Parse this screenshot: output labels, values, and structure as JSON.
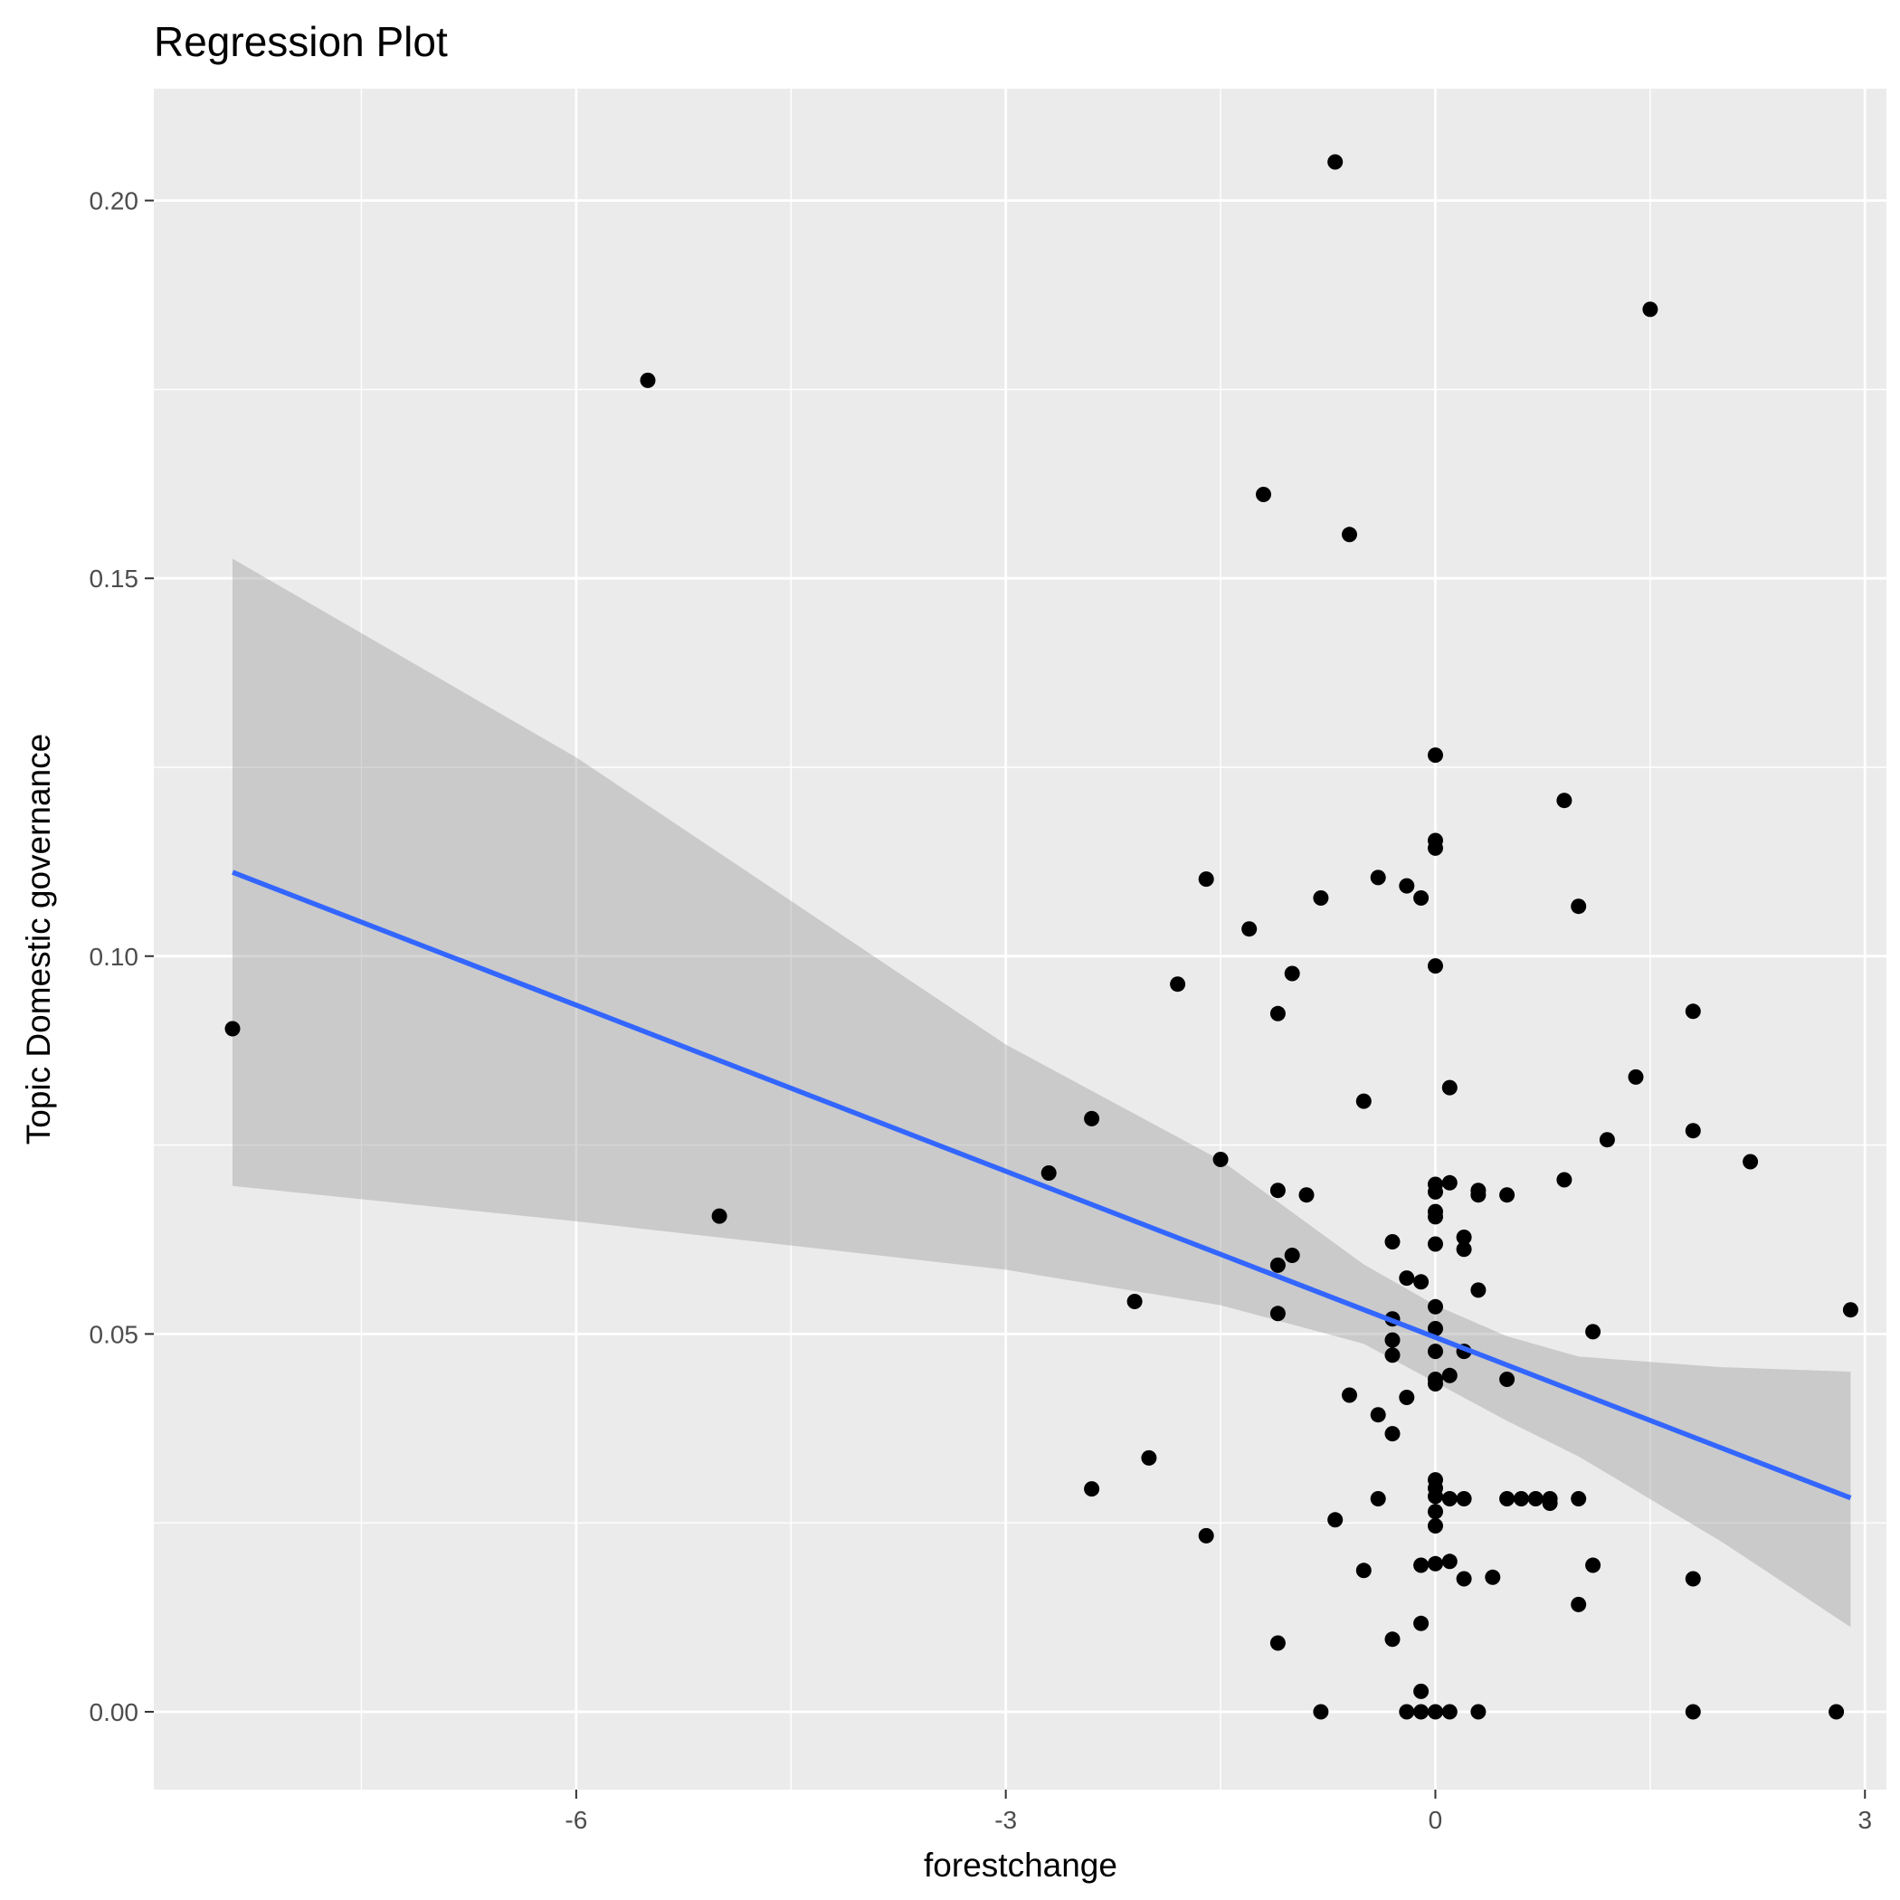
{
  "chart_data": {
    "type": "scatter",
    "title": "Regression Plot",
    "xlabel": "forestchange",
    "ylabel": "Topic Domestic governance",
    "xlim": [
      -8.95,
      3.15
    ],
    "ylim": [
      -0.0103,
      0.2148
    ],
    "x_ticks": [
      -6,
      -3,
      0,
      3
    ],
    "x_tick_labels": [
      "-6",
      "-3",
      "0",
      "3"
    ],
    "x_minor": [
      -7.5,
      -4.5,
      -1.5,
      1.5
    ],
    "y_ticks": [
      0.0,
      0.05,
      0.1,
      0.15,
      0.2
    ],
    "y_tick_labels": [
      "0.00",
      "0.05",
      "0.10",
      "0.15",
      "0.20"
    ],
    "y_minor": [
      0.025,
      0.075,
      0.125,
      0.175
    ],
    "grid": true,
    "points": [
      [
        -8.4,
        0.0904
      ],
      [
        -5.5,
        0.1762
      ],
      [
        -5.0,
        0.0656
      ],
      [
        -2.7,
        0.0713
      ],
      [
        -2.4,
        0.0785
      ],
      [
        -2.4,
        0.0295
      ],
      [
        -2.1,
        0.0543
      ],
      [
        -2.0,
        0.0336
      ],
      [
        -1.8,
        0.0963
      ],
      [
        -1.6,
        0.1102
      ],
      [
        -1.6,
        0.0233
      ],
      [
        -1.5,
        0.0731
      ],
      [
        -1.3,
        0.1036
      ],
      [
        -1.2,
        0.1611
      ],
      [
        -1.1,
        0.0924
      ],
      [
        -1.1,
        0.069
      ],
      [
        -1.1,
        0.0591
      ],
      [
        -1.1,
        0.0527
      ],
      [
        -1.1,
        0.0091
      ],
      [
        -1.0,
        0.0977
      ],
      [
        -1.0,
        0.0604
      ],
      [
        -0.9,
        0.0684
      ],
      [
        -0.8,
        0.1077
      ],
      [
        -0.8,
        0.0
      ],
      [
        -0.7,
        0.2051
      ],
      [
        -0.7,
        0.0254
      ],
      [
        -0.6,
        0.1558
      ],
      [
        -0.6,
        0.0419
      ],
      [
        -0.5,
        0.0808
      ],
      [
        -0.5,
        0.0187
      ],
      [
        -0.4,
        0.1104
      ],
      [
        -0.4,
        0.0393
      ],
      [
        -0.4,
        0.0282
      ],
      [
        -0.3,
        0.0622
      ],
      [
        -0.3,
        0.052
      ],
      [
        -0.3,
        0.0492
      ],
      [
        -0.3,
        0.0472
      ],
      [
        -0.3,
        0.0368
      ],
      [
        -0.3,
        0.0096
      ],
      [
        -0.2,
        0.1093
      ],
      [
        -0.2,
        0.0574
      ],
      [
        -0.2,
        0.0416
      ],
      [
        -0.2,
        0.0
      ],
      [
        -0.1,
        0.1077
      ],
      [
        -0.1,
        0.0569
      ],
      [
        -0.1,
        0.0194
      ],
      [
        -0.1,
        0.0117
      ],
      [
        -0.1,
        0.0027
      ],
      [
        -0.1,
        0.0
      ],
      [
        0.0,
        0.1266
      ],
      [
        0.0,
        0.1153
      ],
      [
        0.0,
        0.1143
      ],
      [
        0.0,
        0.0987
      ],
      [
        0.0,
        0.0698
      ],
      [
        0.0,
        0.0688
      ],
      [
        0.0,
        0.0662
      ],
      [
        0.0,
        0.0655
      ],
      [
        0.0,
        0.0619
      ],
      [
        0.0,
        0.0536
      ],
      [
        0.0,
        0.0507
      ],
      [
        0.0,
        0.0477
      ],
      [
        0.0,
        0.044
      ],
      [
        0.0,
        0.0434
      ],
      [
        0.0,
        0.0307
      ],
      [
        0.0,
        0.0296
      ],
      [
        0.0,
        0.0285
      ],
      [
        0.0,
        0.0265
      ],
      [
        0.0,
        0.0246
      ],
      [
        0.0,
        0.0196
      ],
      [
        0.0,
        0.0
      ],
      [
        0.1,
        0.0826
      ],
      [
        0.1,
        0.07
      ],
      [
        0.1,
        0.0445
      ],
      [
        0.1,
        0.0282
      ],
      [
        0.1,
        0.0199
      ],
      [
        0.1,
        0.0
      ],
      [
        0.2,
        0.0628
      ],
      [
        0.2,
        0.0612
      ],
      [
        0.2,
        0.0477
      ],
      [
        0.2,
        0.0282
      ],
      [
        0.2,
        0.0176
      ],
      [
        0.3,
        0.069
      ],
      [
        0.3,
        0.0684
      ],
      [
        0.3,
        0.0558
      ],
      [
        0.3,
        0.0
      ],
      [
        0.4,
        0.0178
      ],
      [
        0.5,
        0.0684
      ],
      [
        0.5,
        0.044
      ],
      [
        0.5,
        0.0282
      ],
      [
        0.6,
        0.0282
      ],
      [
        0.7,
        0.0282
      ],
      [
        0.8,
        0.0282
      ],
      [
        0.8,
        0.0276
      ],
      [
        0.9,
        0.1206
      ],
      [
        0.9,
        0.0704
      ],
      [
        1.0,
        0.1066
      ],
      [
        1.0,
        0.0282
      ],
      [
        1.0,
        0.0142
      ],
      [
        1.1,
        0.0503
      ],
      [
        1.1,
        0.0194
      ],
      [
        1.2,
        0.0757
      ],
      [
        1.4,
        0.084
      ],
      [
        1.5,
        0.1856
      ],
      [
        1.8,
        0.0927
      ],
      [
        1.8,
        0.0769
      ],
      [
        1.8,
        0.0176
      ],
      [
        1.8,
        0.0
      ],
      [
        2.2,
        0.0728
      ],
      [
        2.8,
        0.0
      ],
      [
        2.9,
        0.0532
      ]
    ],
    "fit": {
      "x": [
        -8.4,
        2.9
      ],
      "y": [
        0.1111,
        0.0283
      ]
    },
    "ci_band": {
      "x": [
        -8.4,
        -6.0,
        -3.0,
        -1.5,
        -0.5,
        0.0,
        0.5,
        1.0,
        2.0,
        2.9
      ],
      "lower": [
        0.0696,
        0.0649,
        0.0585,
        0.0538,
        0.0487,
        0.0436,
        0.0385,
        0.0338,
        0.0225,
        0.0112
      ],
      "upper": [
        0.1526,
        0.1263,
        0.0883,
        0.073,
        0.0592,
        0.0538,
        0.0497,
        0.047,
        0.0456,
        0.045
      ]
    },
    "colors": {
      "panel": "#ebebeb",
      "grid": "#ffffff",
      "point": "#000000",
      "line": "#3366ff",
      "ribbon": "#999999"
    }
  }
}
